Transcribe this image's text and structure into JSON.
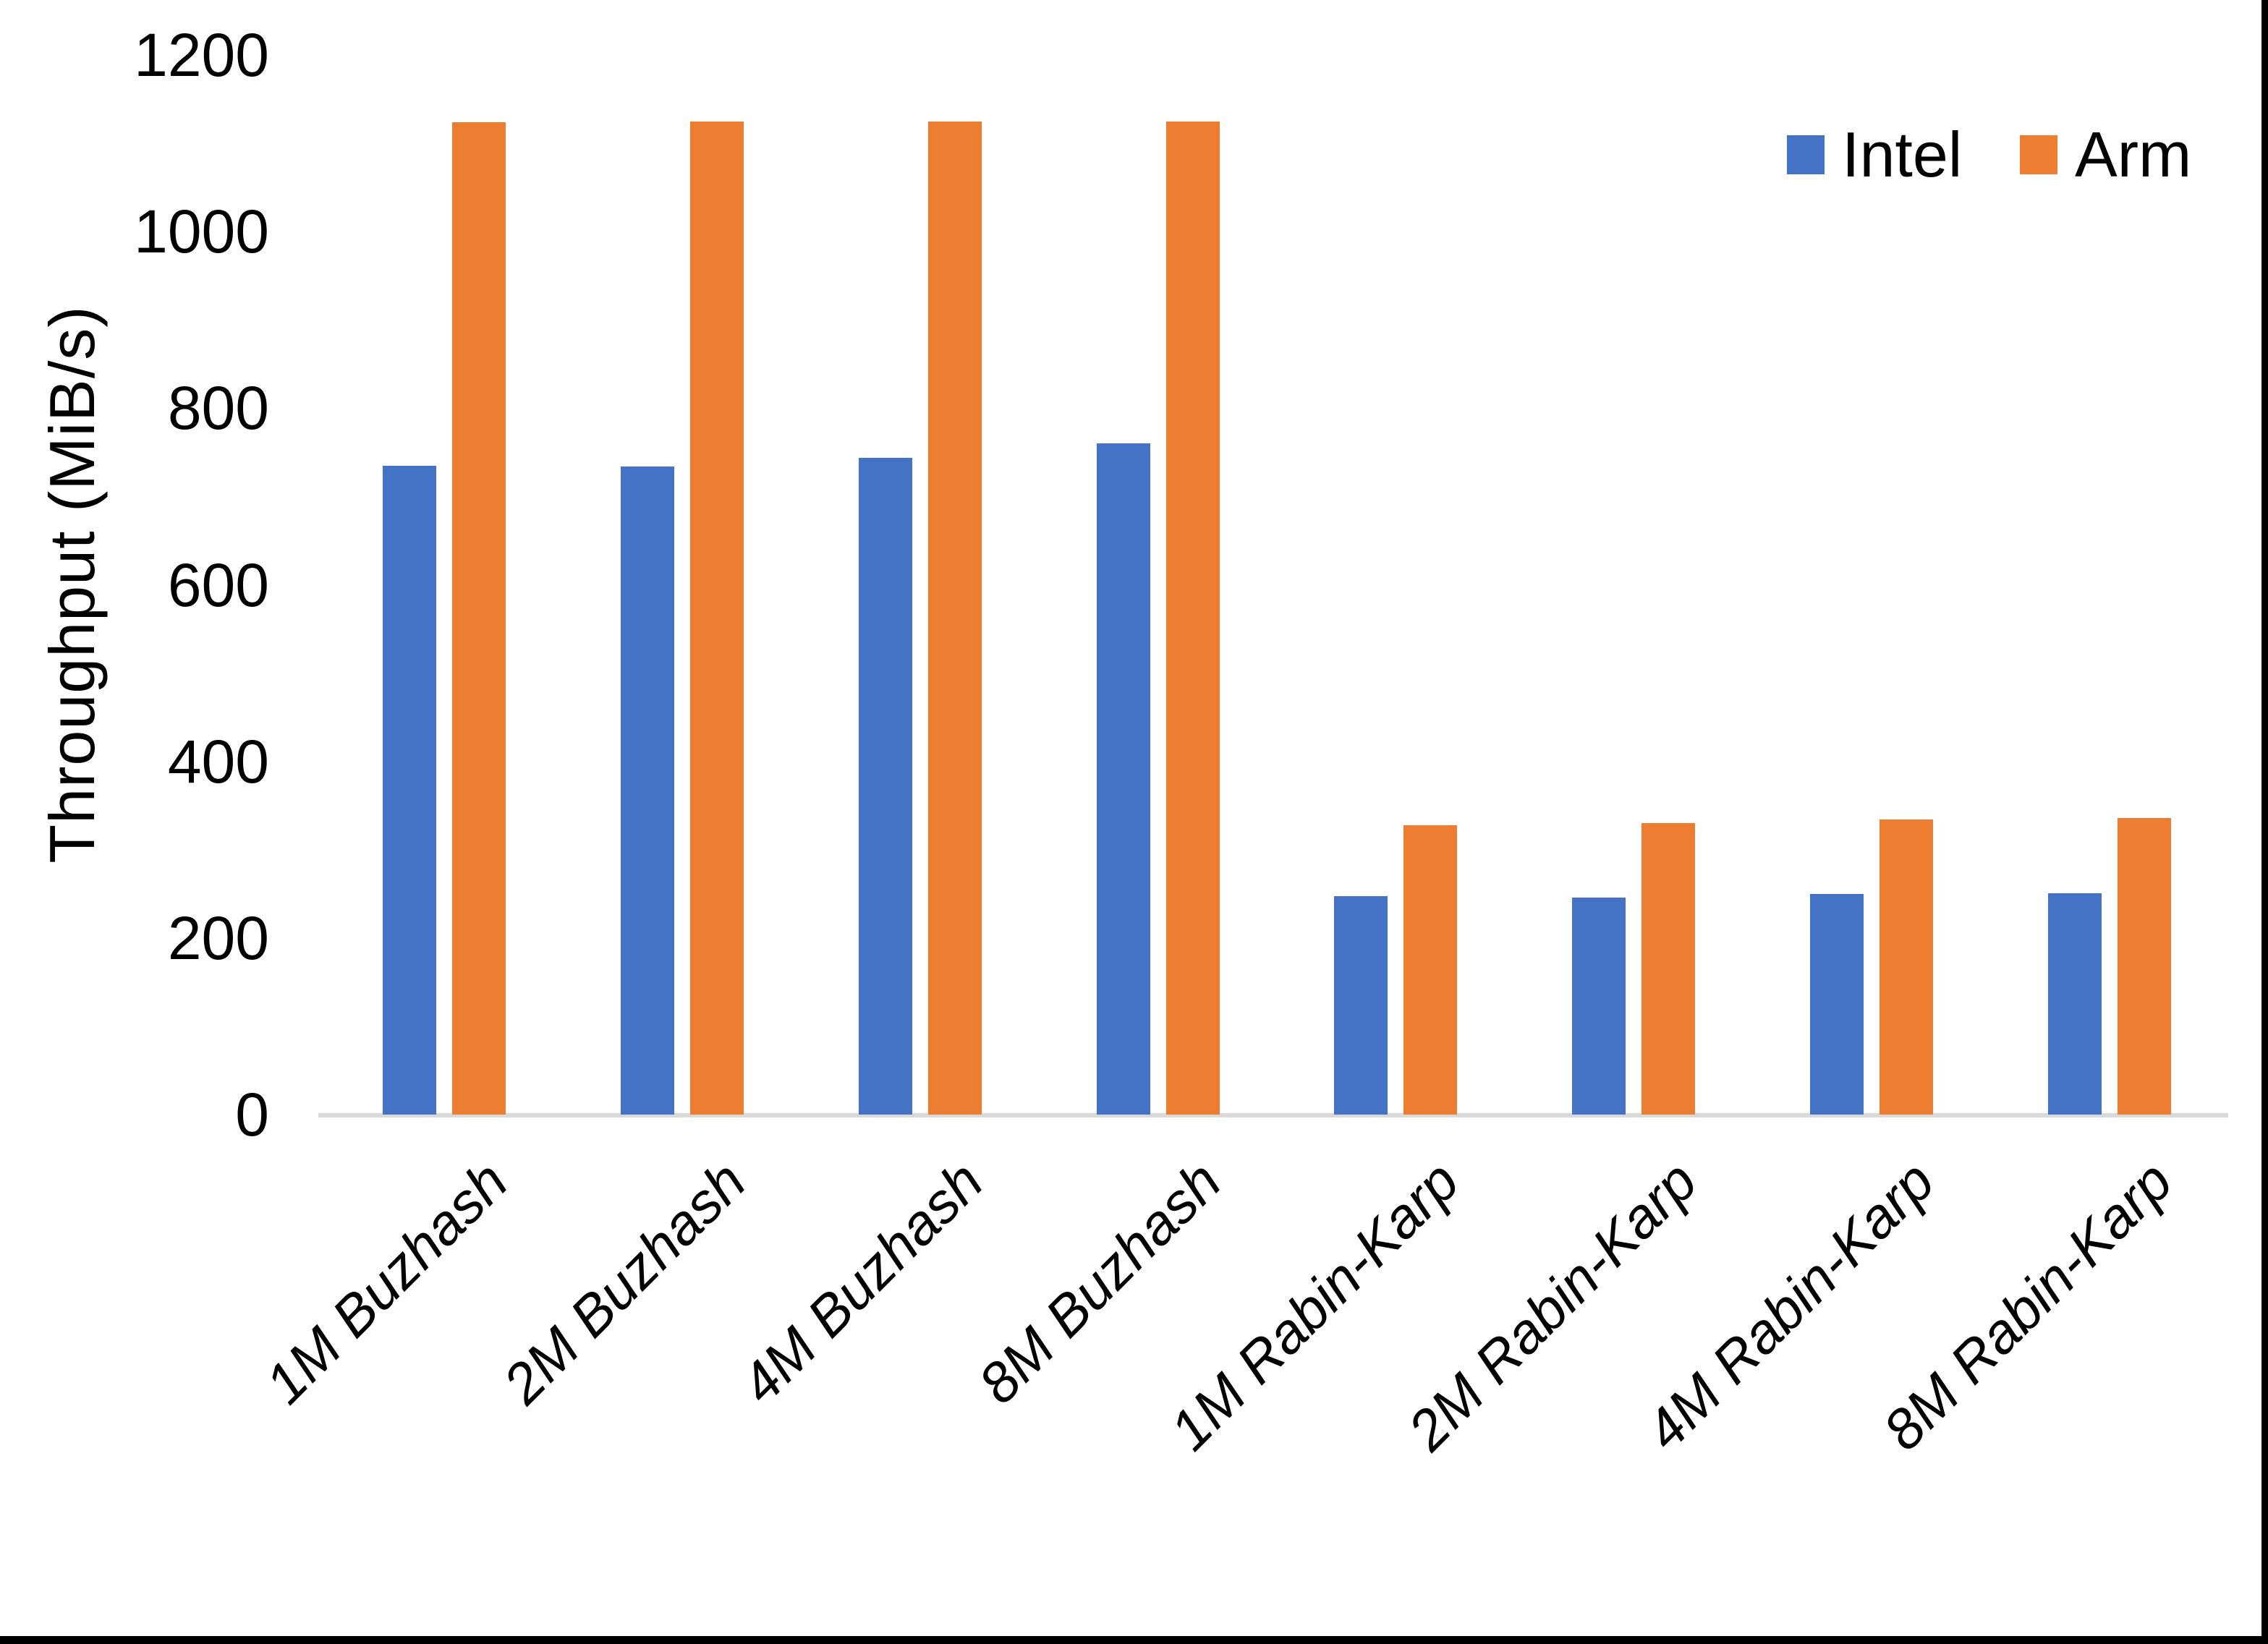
{
  "chart_data": {
    "type": "bar",
    "title": "",
    "xlabel": "",
    "ylabel": "Throughput (MiB/s)",
    "ylim": [
      0,
      1200
    ],
    "yticks": [
      0,
      200,
      400,
      600,
      800,
      1000,
      1200
    ],
    "grid": false,
    "legend_position": "top-right",
    "categories": [
      "1M Buzhash",
      "2M Buzhash",
      "4M Buzhash",
      "8M Buzhash",
      "1M Rabin-Karp",
      "2M Rabin-Karp",
      "4M Rabin-Karp",
      "8M Rabin-Karp"
    ],
    "series": [
      {
        "name": "Intel",
        "color": "#4472C4",
        "values": [
          735,
          734,
          744,
          760,
          247,
          246,
          250,
          251
        ]
      },
      {
        "name": "Arm",
        "color": "#ED7D31",
        "values": [
          1124,
          1125,
          1125,
          1125,
          328,
          330,
          334,
          336
        ]
      }
    ],
    "colors": {
      "axis_line": "#D9D9D9",
      "text": "#000000",
      "background": "#FFFFFF"
    }
  }
}
